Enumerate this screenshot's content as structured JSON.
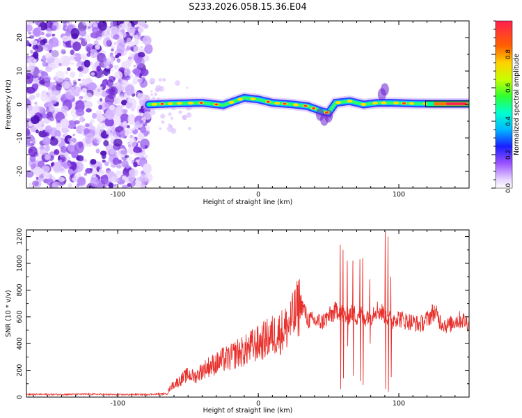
{
  "title": "S233.2026.058.15.36.E04",
  "colors": {
    "snr_line": "#e8302c",
    "scatter_purple": "#7a28d8",
    "frame": "#000000"
  },
  "chart_data": [
    {
      "type": "heatmap",
      "name": "spectrogram",
      "title": "S233.2026.058.15.36.E04",
      "xlabel": "Height of straight line (km)",
      "ylabel": "Frequency (Hz)",
      "xlim": [
        -165,
        150
      ],
      "ylim": [
        -25,
        25
      ],
      "xticks": [
        -100,
        0,
        100
      ],
      "xtick_labels": [
        "-100",
        "0",
        "100"
      ],
      "yticks": [
        -20,
        -10,
        0,
        10,
        20
      ],
      "ytick_labels": [
        "-20",
        "-10",
        "0",
        "10",
        "20"
      ],
      "noise_region_x": [
        -165,
        -78
      ],
      "signal_start_x": -78,
      "ridge_x": [
        -78,
        -60,
        -40,
        -25,
        -10,
        0,
        10,
        25,
        35,
        45,
        50,
        55,
        65,
        75,
        85,
        95,
        110,
        125,
        150
      ],
      "ridge_y": [
        0.0,
        0.3,
        0.5,
        -0.2,
        2.0,
        1.5,
        0.5,
        0.0,
        -0.5,
        -2.0,
        -2.5,
        0.5,
        1.0,
        0.0,
        0.5,
        0.5,
        0.3,
        0.2,
        0.2
      ],
      "colorbar": {
        "label": "Normalized spectral amplitude",
        "range": [
          0,
          1
        ],
        "ticks": [
          0.0,
          0.2,
          0.4,
          0.6,
          0.8
        ],
        "tick_labels": [
          "0.0",
          "0.2",
          "0.4",
          "0.6",
          "0.8"
        ]
      }
    },
    {
      "type": "line",
      "name": "snr",
      "xlabel": "Height of straight line (km)",
      "ylabel": "SNR (10 * v/v)",
      "xlim": [
        -165,
        150
      ],
      "ylim": [
        0,
        1250
      ],
      "xticks": [
        -100,
        0,
        100
      ],
      "xtick_labels": [
        "-100",
        "0",
        "100"
      ],
      "yticks": [
        0,
        200,
        400,
        600,
        800,
        1000,
        1200
      ],
      "ytick_labels": [
        "0",
        "200",
        "400",
        "600",
        "800",
        "1000",
        "1200"
      ],
      "series": [
        {
          "name": "SNR",
          "x": [
            -165,
            -140,
            -120,
            -100,
            -80,
            -65,
            -62,
            -55,
            -50,
            -45,
            -40,
            -35,
            -30,
            -25,
            -20,
            -15,
            -10,
            -5,
            0,
            5,
            10,
            15,
            20,
            25,
            28,
            30,
            33,
            35,
            40,
            45,
            50,
            55,
            57,
            60,
            63,
            67,
            70,
            72,
            75,
            78,
            80,
            83,
            87,
            90,
            92,
            95,
            97,
            100,
            105,
            110,
            115,
            120,
            125,
            130,
            135,
            140,
            145,
            150
          ],
          "y": [
            20,
            20,
            22,
            18,
            20,
            25,
            80,
            130,
            170,
            150,
            200,
            230,
            250,
            280,
            290,
            330,
            340,
            380,
            400,
            430,
            460,
            480,
            520,
            590,
            660,
            710,
            640,
            580,
            570,
            560,
            600,
            640,
            660,
            620,
            600,
            640,
            600,
            640,
            580,
            620,
            600,
            660,
            640,
            620,
            600,
            560,
            600,
            590,
            570,
            560,
            540,
            580,
            640,
            560,
            530,
            570,
            580,
            550
          ]
        }
      ],
      "spikes": [
        {
          "x": 58,
          "low": 60,
          "high": 1140
        },
        {
          "x": 60,
          "low": 140,
          "high": 1100
        },
        {
          "x": 63,
          "low": 380,
          "high": 1020
        },
        {
          "x": 67,
          "low": 160,
          "high": 1020
        },
        {
          "x": 72,
          "low": 120,
          "high": 1030
        },
        {
          "x": 74,
          "low": 90,
          "high": 1040
        },
        {
          "x": 79,
          "low": 400,
          "high": 880
        },
        {
          "x": 90,
          "low": 60,
          "high": 1240
        },
        {
          "x": 92,
          "low": 40,
          "high": 1200
        },
        {
          "x": 94,
          "low": 150,
          "high": 900
        }
      ]
    }
  ]
}
